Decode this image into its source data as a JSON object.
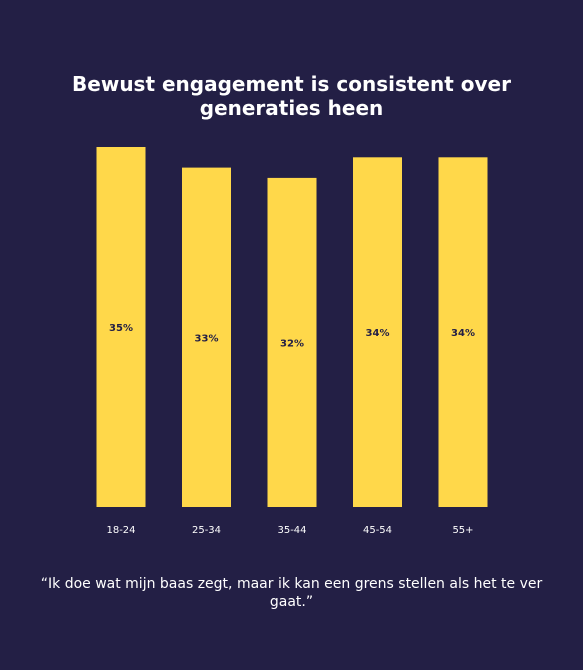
{
  "colors": {
    "background": "#231f45",
    "bar": "#ffd84a",
    "bar_label": "#231f45",
    "text": "#ffffff"
  },
  "chart_data": {
    "type": "bar",
    "title": "Bewust engagement is consistent over generaties heen",
    "categories": [
      "18-24",
      "25-34",
      "35-44",
      "45-54",
      "55+"
    ],
    "values": [
      35,
      33,
      32,
      34,
      34
    ],
    "value_labels": [
      "35%",
      "33%",
      "32%",
      "34%",
      "34%"
    ],
    "ylim": [
      0,
      35
    ],
    "grid": false,
    "legend": "none"
  },
  "quote": {
    "text": "“Ik doe wat mijn baas zegt, maar ik kan een grens stellen als het te ver gaat.”"
  }
}
